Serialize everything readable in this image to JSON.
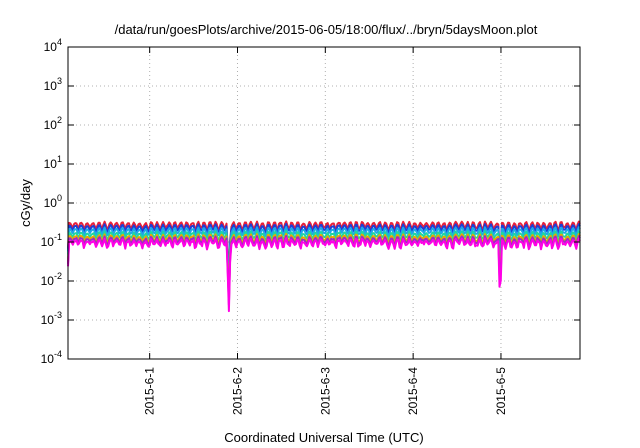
{
  "chart_data": {
    "type": "line",
    "title": "/data/run/goesPlots/archive/2015-06-05/18:00/flux/../bryn/5daysMoon.plot",
    "xlabel": "Coordinated Universal Time (UTC)",
    "ylabel": "cGy/day",
    "yscale": "log",
    "ylim": [
      0.0001,
      10000
    ],
    "y_ticks": [
      {
        "base": "10",
        "exp": "-4"
      },
      {
        "base": "10",
        "exp": "-3"
      },
      {
        "base": "10",
        "exp": "-2"
      },
      {
        "base": "10",
        "exp": "-1"
      },
      {
        "base": "10",
        "exp": "0"
      },
      {
        "base": "10",
        "exp": "1"
      },
      {
        "base": "10",
        "exp": "2"
      },
      {
        "base": "10",
        "exp": "3"
      },
      {
        "base": "10",
        "exp": "4"
      }
    ],
    "x_range_days": [
      0,
      5.83
    ],
    "x_ticks": [
      {
        "label": "2015-6-1",
        "day": 0.93
      },
      {
        "label": "2015-6-2",
        "day": 1.93
      },
      {
        "label": "2015-6-3",
        "day": 2.93
      },
      {
        "label": "2015-6-4",
        "day": 3.93
      },
      {
        "label": "2015-6-5",
        "day": 4.93
      }
    ],
    "grid": true,
    "legend": "none",
    "series": [
      {
        "color": "#e8203a",
        "level": 0.27,
        "dips": [
          {
            "day": 1.83,
            "value": 0.006
          },
          {
            "day": 4.92,
            "value": 0.04
          }
        ]
      },
      {
        "color": "#1c3fd6",
        "level": 0.23,
        "dips": [
          {
            "day": 1.83,
            "value": 0.005
          },
          {
            "day": 4.92,
            "value": 0.04
          }
        ]
      },
      {
        "color": "#1ea8e8",
        "level": 0.19,
        "dips": [
          {
            "day": 1.83,
            "value": 0.004
          },
          {
            "day": 4.92,
            "value": 0.03
          }
        ]
      },
      {
        "color": "#1fd6a0",
        "level": 0.15,
        "dips": [
          {
            "day": 1.83,
            "value": 0.003
          },
          {
            "day": 4.92,
            "value": 0.02
          }
        ]
      },
      {
        "color": "#e8a800",
        "level": 0.125,
        "dips": [
          {
            "day": 1.83,
            "value": 0.002
          },
          {
            "day": 4.92,
            "value": 0.01
          }
        ]
      },
      {
        "color": "#9a2fc0",
        "level": 0.11,
        "dips": [
          {
            "day": 1.83,
            "value": 0.0015
          },
          {
            "day": 4.92,
            "value": 0.006
          }
        ]
      },
      {
        "color": "#ff00e6",
        "level": 0.095,
        "dips": [
          {
            "day": 1.83,
            "value": 0.001
          },
          {
            "day": 4.92,
            "value": 0.0025
          }
        ]
      }
    ]
  }
}
